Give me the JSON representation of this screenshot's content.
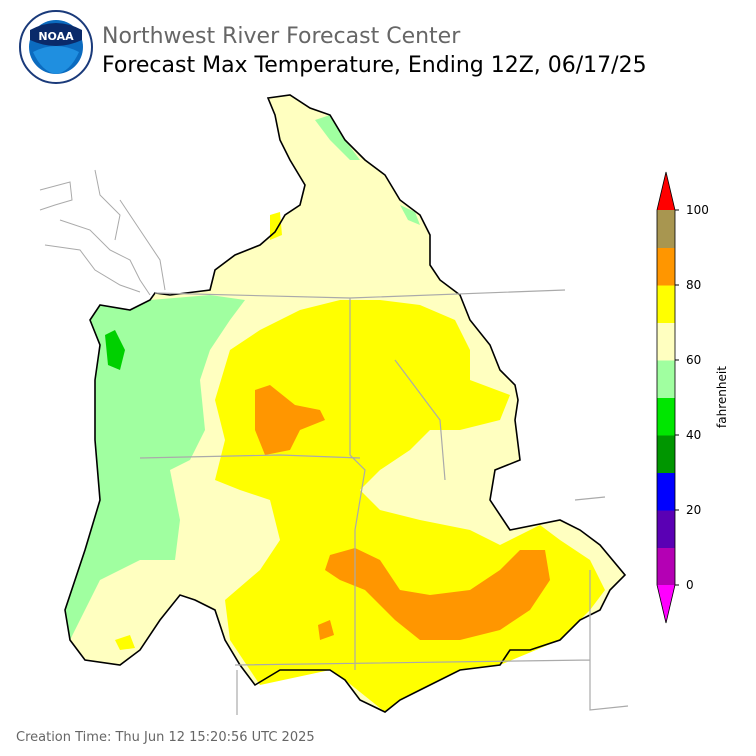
{
  "header": {
    "title": "Northwest River Forecast Center",
    "subtitle": "Forecast Max Temperature, Ending 12Z, 06/17/25"
  },
  "logo": {
    "text": "NOAA"
  },
  "colorbar": {
    "label": "fahrenheit",
    "range": [
      0,
      100
    ],
    "ticks": [
      0,
      20,
      40,
      60,
      80,
      100
    ],
    "colors": [
      "#b400b4",
      "#5a00b4",
      "#0000ff",
      "#009600",
      "#00e600",
      "#a0ffa0",
      "#ffffc0",
      "#ffff00",
      "#ff9600",
      "#a89650"
    ],
    "under_color": "#ff00ff",
    "over_color": "#ff0000"
  },
  "footer": {
    "creation_time": "Creation Time: Thu Jun 12 15:20:56 UTC 2025"
  }
}
